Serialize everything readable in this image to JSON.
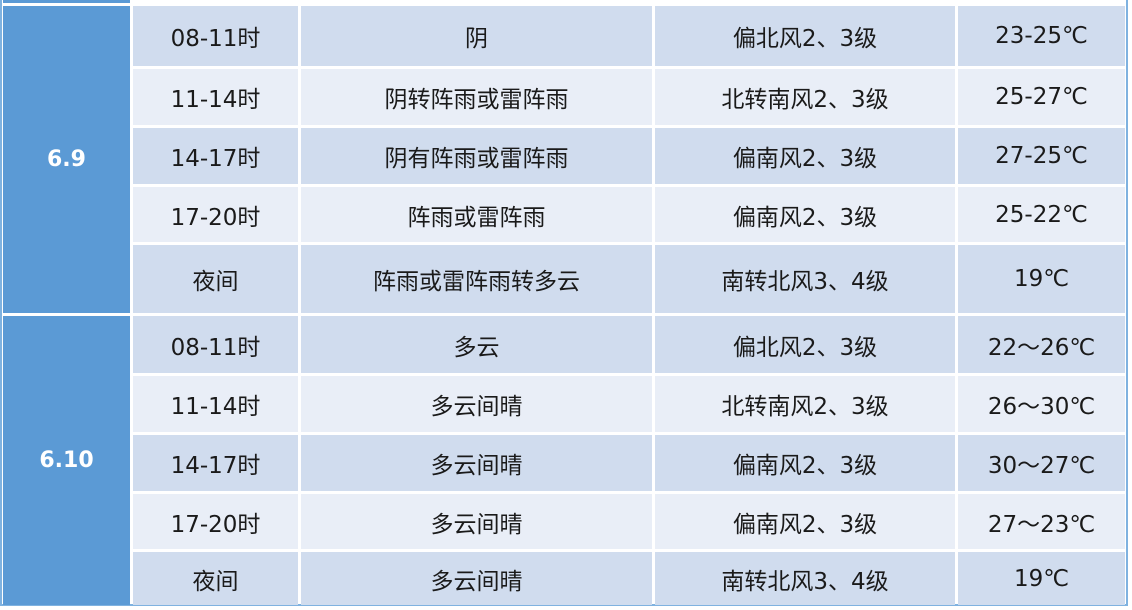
{
  "colors": {
    "date_bg": "#5b9ad5",
    "row_dark": "#d0dcee",
    "row_light": "#e9eef7"
  },
  "groups": [
    {
      "date": "6.9",
      "rows": [
        {
          "time": "08-11时",
          "weather": "阴",
          "wind": "偏北风2、3级",
          "temp": "23-25℃"
        },
        {
          "time": "11-14时",
          "weather": "阴转阵雨或雷阵雨",
          "wind": "北转南风2、3级",
          "temp": "25-27℃"
        },
        {
          "time": "14-17时",
          "weather": "阴有阵雨或雷阵雨",
          "wind": "偏南风2、3级",
          "temp": "27-25℃"
        },
        {
          "time": "17-20时",
          "weather": "阵雨或雷阵雨",
          "wind": "偏南风2、3级",
          "temp": "25-22℃"
        },
        {
          "time": "夜间",
          "weather": "阵雨或雷阵雨转多云",
          "wind": "南转北风3、4级",
          "temp": "19℃"
        }
      ]
    },
    {
      "date": "6.10",
      "rows": [
        {
          "time": "08-11时",
          "weather": "多云",
          "wind": "偏北风2、3级",
          "temp": "22～26℃"
        },
        {
          "time": "11-14时",
          "weather": "多云间晴",
          "wind": "北转南风2、3级",
          "temp": "26～30℃"
        },
        {
          "time": "14-17时",
          "weather": "多云间晴",
          "wind": "偏南风2、3级",
          "temp": "30～27℃"
        },
        {
          "time": "17-20时",
          "weather": "多云间晴",
          "wind": "偏南风2、3级",
          "temp": "27～23℃"
        },
        {
          "time": "夜间",
          "weather": "多云间晴",
          "wind": "南转北风3、4级",
          "temp": "19℃"
        }
      ]
    }
  ]
}
